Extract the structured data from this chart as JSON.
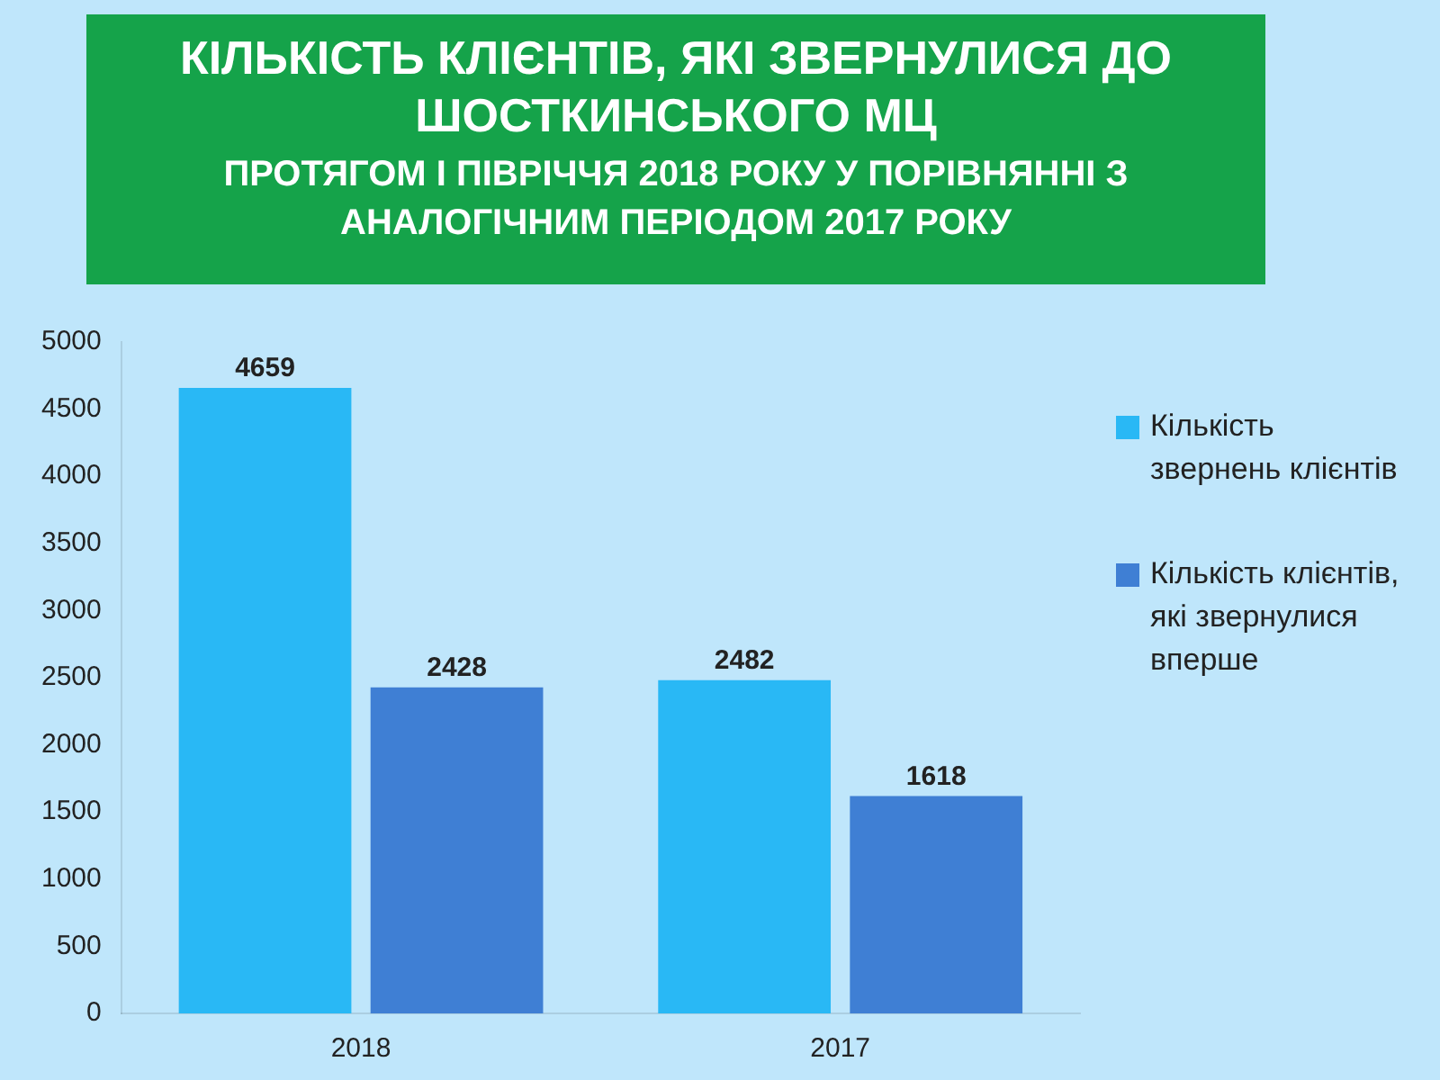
{
  "chart_data": {
    "type": "bar",
    "title": "КІЛЬКІСТЬ КЛІЄНТІВ, ЯКІ ЗВЕРНУЛИСЯ ДО ШОСТКИНСЬКОГО МЦ",
    "subtitle": "ПРОТЯГОМ І ПІВРІЧЧЯ 2018 РОКУ У ПОРІВНЯННІ З АНАЛОГІЧНИМ ПЕРІОДОМ 2017 РОКУ",
    "categories": [
      "2018",
      "2017"
    ],
    "series": [
      {
        "name": "Кількість звернень клієнтів",
        "color": "#29b8f5",
        "values": [
          4659,
          2482
        ]
      },
      {
        "name": "Кількість клієнтів, які звернулися вперше",
        "color": "#3f7fd4",
        "values": [
          2428,
          1618
        ]
      }
    ],
    "ylim": [
      0,
      5000
    ],
    "yticks": [
      0,
      500,
      1000,
      1500,
      2000,
      2500,
      3000,
      3500,
      4000,
      4500,
      5000
    ],
    "grid": false,
    "legend": "right",
    "data_labels": true
  }
}
